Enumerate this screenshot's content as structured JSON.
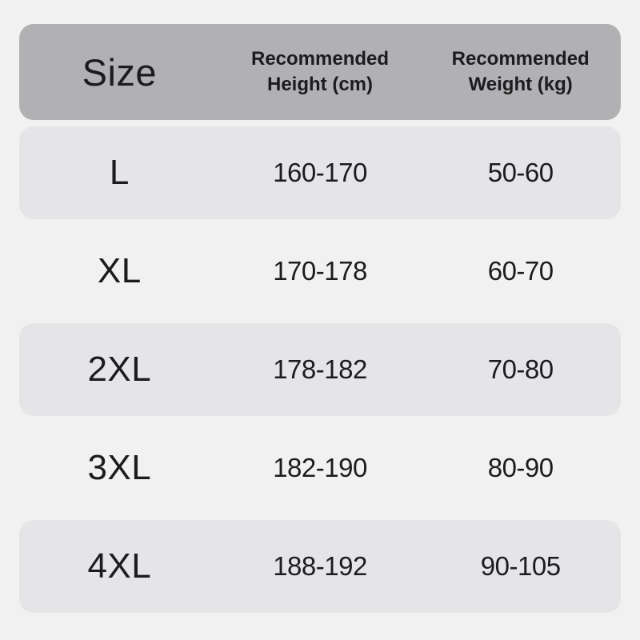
{
  "page": {
    "background_color": "#f1f1f2",
    "header_background_color": "#b1b1b3",
    "band_color": "#e5e5e7",
    "text_color": "#1c1c1e"
  },
  "table": {
    "header": {
      "size_label": "Size",
      "height_label": "Recommended\nHeight (cm)",
      "weight_label": "Recommended\nWeight (kg)"
    },
    "rows": [
      {
        "size": "L",
        "height_cm": "160-170",
        "weight_kg": "50-60"
      },
      {
        "size": "XL",
        "height_cm": "170-178",
        "weight_kg": "60-70"
      },
      {
        "size": "2XL",
        "height_cm": "178-182",
        "weight_kg": "70-80"
      },
      {
        "size": "3XL",
        "height_cm": "182-190",
        "weight_kg": "80-90"
      },
      {
        "size": "4XL",
        "height_cm": "188-192",
        "weight_kg": "90-105"
      }
    ]
  },
  "chart_data": {
    "type": "table",
    "title": "Size chart",
    "columns": [
      "Size",
      "Recommended Height (cm)",
      "Recommended Weight (kg)"
    ],
    "rows": [
      [
        "L",
        "160-170",
        "50-60"
      ],
      [
        "XL",
        "170-178",
        "60-70"
      ],
      [
        "2XL",
        "178-182",
        "70-80"
      ],
      [
        "3XL",
        "182-190",
        "80-90"
      ],
      [
        "4XL",
        "188-192",
        "90-105"
      ]
    ],
    "layout_hints": {
      "banded_rows": [
        0,
        2,
        4
      ],
      "header_style": "gray rounded bar",
      "alignment": "center"
    }
  }
}
